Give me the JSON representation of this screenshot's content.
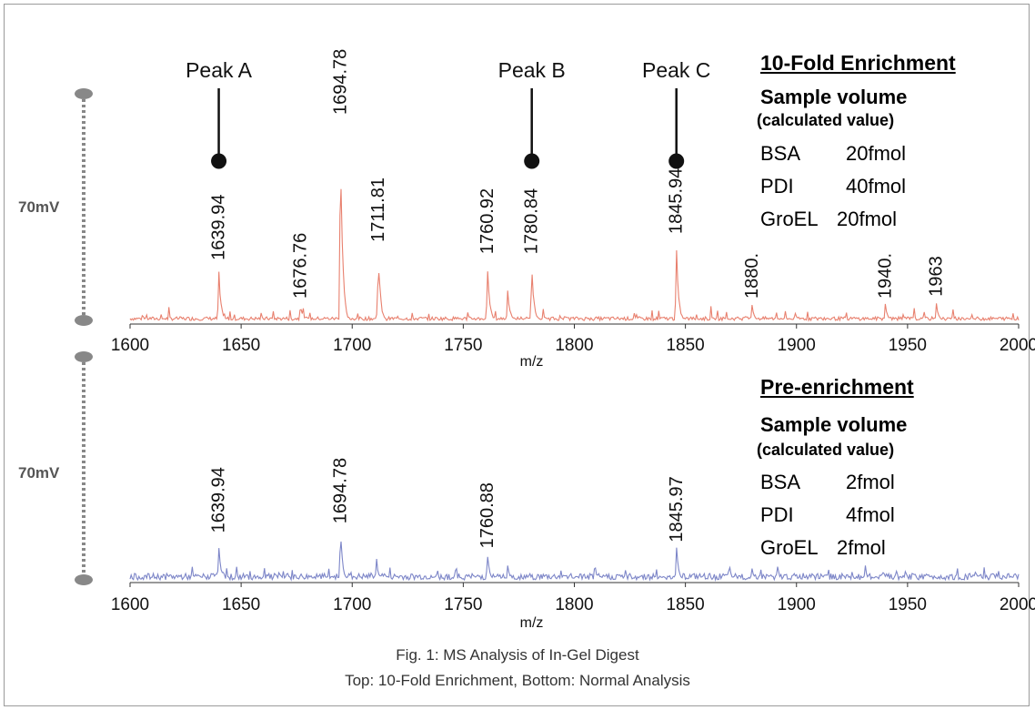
{
  "caption": {
    "line1": "Fig. 1: MS Analysis of In-Gel Digest",
    "line2": "Top: 10-Fold Enrichment, Bottom: Normal Analysis"
  },
  "top": {
    "title": "10-Fold Enrichment",
    "sample_heading": "Sample volume",
    "sample_sub": "(calculated value)",
    "rows": [
      {
        "name": "BSA",
        "value": "20fmol"
      },
      {
        "name": "PDI",
        "value": "40fmol"
      },
      {
        "name": "GroEL",
        "value": "20fmol"
      }
    ],
    "scale_label": "70mV"
  },
  "bottom": {
    "title": "Pre-enrichment",
    "sample_heading": "Sample volume",
    "sample_sub": "(calculated value)",
    "rows": [
      {
        "name": "BSA",
        "value": "2fmol"
      },
      {
        "name": "PDI",
        "value": "4fmol"
      },
      {
        "name": "GroEL",
        "value": "2fmol"
      }
    ],
    "scale_label": "70mV"
  },
  "chart_data": [
    {
      "type": "line",
      "xlabel": "m/z",
      "ylabel": "",
      "xlim": [
        1600,
        2000
      ],
      "xticks": [
        1600,
        1650,
        1700,
        1750,
        1800,
        1850,
        1900,
        1950,
        2000
      ],
      "color": "#e8806e",
      "peaks": [
        {
          "mz": 1639.94,
          "label": "1639.94",
          "rel": 0.28
        },
        {
          "mz": 1676.76,
          "label": "1676.76",
          "rel": 0.09
        },
        {
          "mz": 1694.78,
          "label": "1694.78",
          "rel": 1.0
        },
        {
          "mz": 1711.81,
          "label": "1711.81",
          "rel": 0.37
        },
        {
          "mz": 1760.92,
          "label": "1760.92",
          "rel": 0.31
        },
        {
          "mz": 1770.0,
          "label": "",
          "rel": 0.18
        },
        {
          "mz": 1780.84,
          "label": "1780.84",
          "rel": 0.31
        },
        {
          "mz": 1845.94,
          "label": "1845.94",
          "rel": 0.41
        },
        {
          "mz": 1880.0,
          "label": "1880.",
          "rel": 0.09
        },
        {
          "mz": 1940.0,
          "label": "1940.",
          "rel": 0.09
        },
        {
          "mz": 1963.0,
          "label": "1963",
          "rel": 0.1
        }
      ],
      "annotations": [
        {
          "label": "Peak A",
          "mz": 1639.94
        },
        {
          "label": "Peak B",
          "mz": 1780.84
        },
        {
          "label": "Peak C",
          "mz": 1845.94
        }
      ]
    },
    {
      "type": "line",
      "xlabel": "m/z",
      "ylabel": "",
      "xlim": [
        1600,
        2000
      ],
      "xticks": [
        1600,
        1650,
        1700,
        1750,
        1800,
        1850,
        1900,
        1950,
        2000
      ],
      "color": "#7d86c8",
      "peaks": [
        {
          "mz": 1639.94,
          "label": "1639.94",
          "rel": 0.14
        },
        {
          "mz": 1694.78,
          "label": "1694.78",
          "rel": 0.17
        },
        {
          "mz": 1711.0,
          "label": "",
          "rel": 0.07
        },
        {
          "mz": 1760.88,
          "label": "1760.88",
          "rel": 0.09
        },
        {
          "mz": 1770.0,
          "label": "",
          "rel": 0.05
        },
        {
          "mz": 1845.97,
          "label": "1845.97",
          "rel": 0.11
        },
        {
          "mz": 1880.0,
          "label": "",
          "rel": 0.04
        }
      ],
      "annotations": []
    }
  ]
}
